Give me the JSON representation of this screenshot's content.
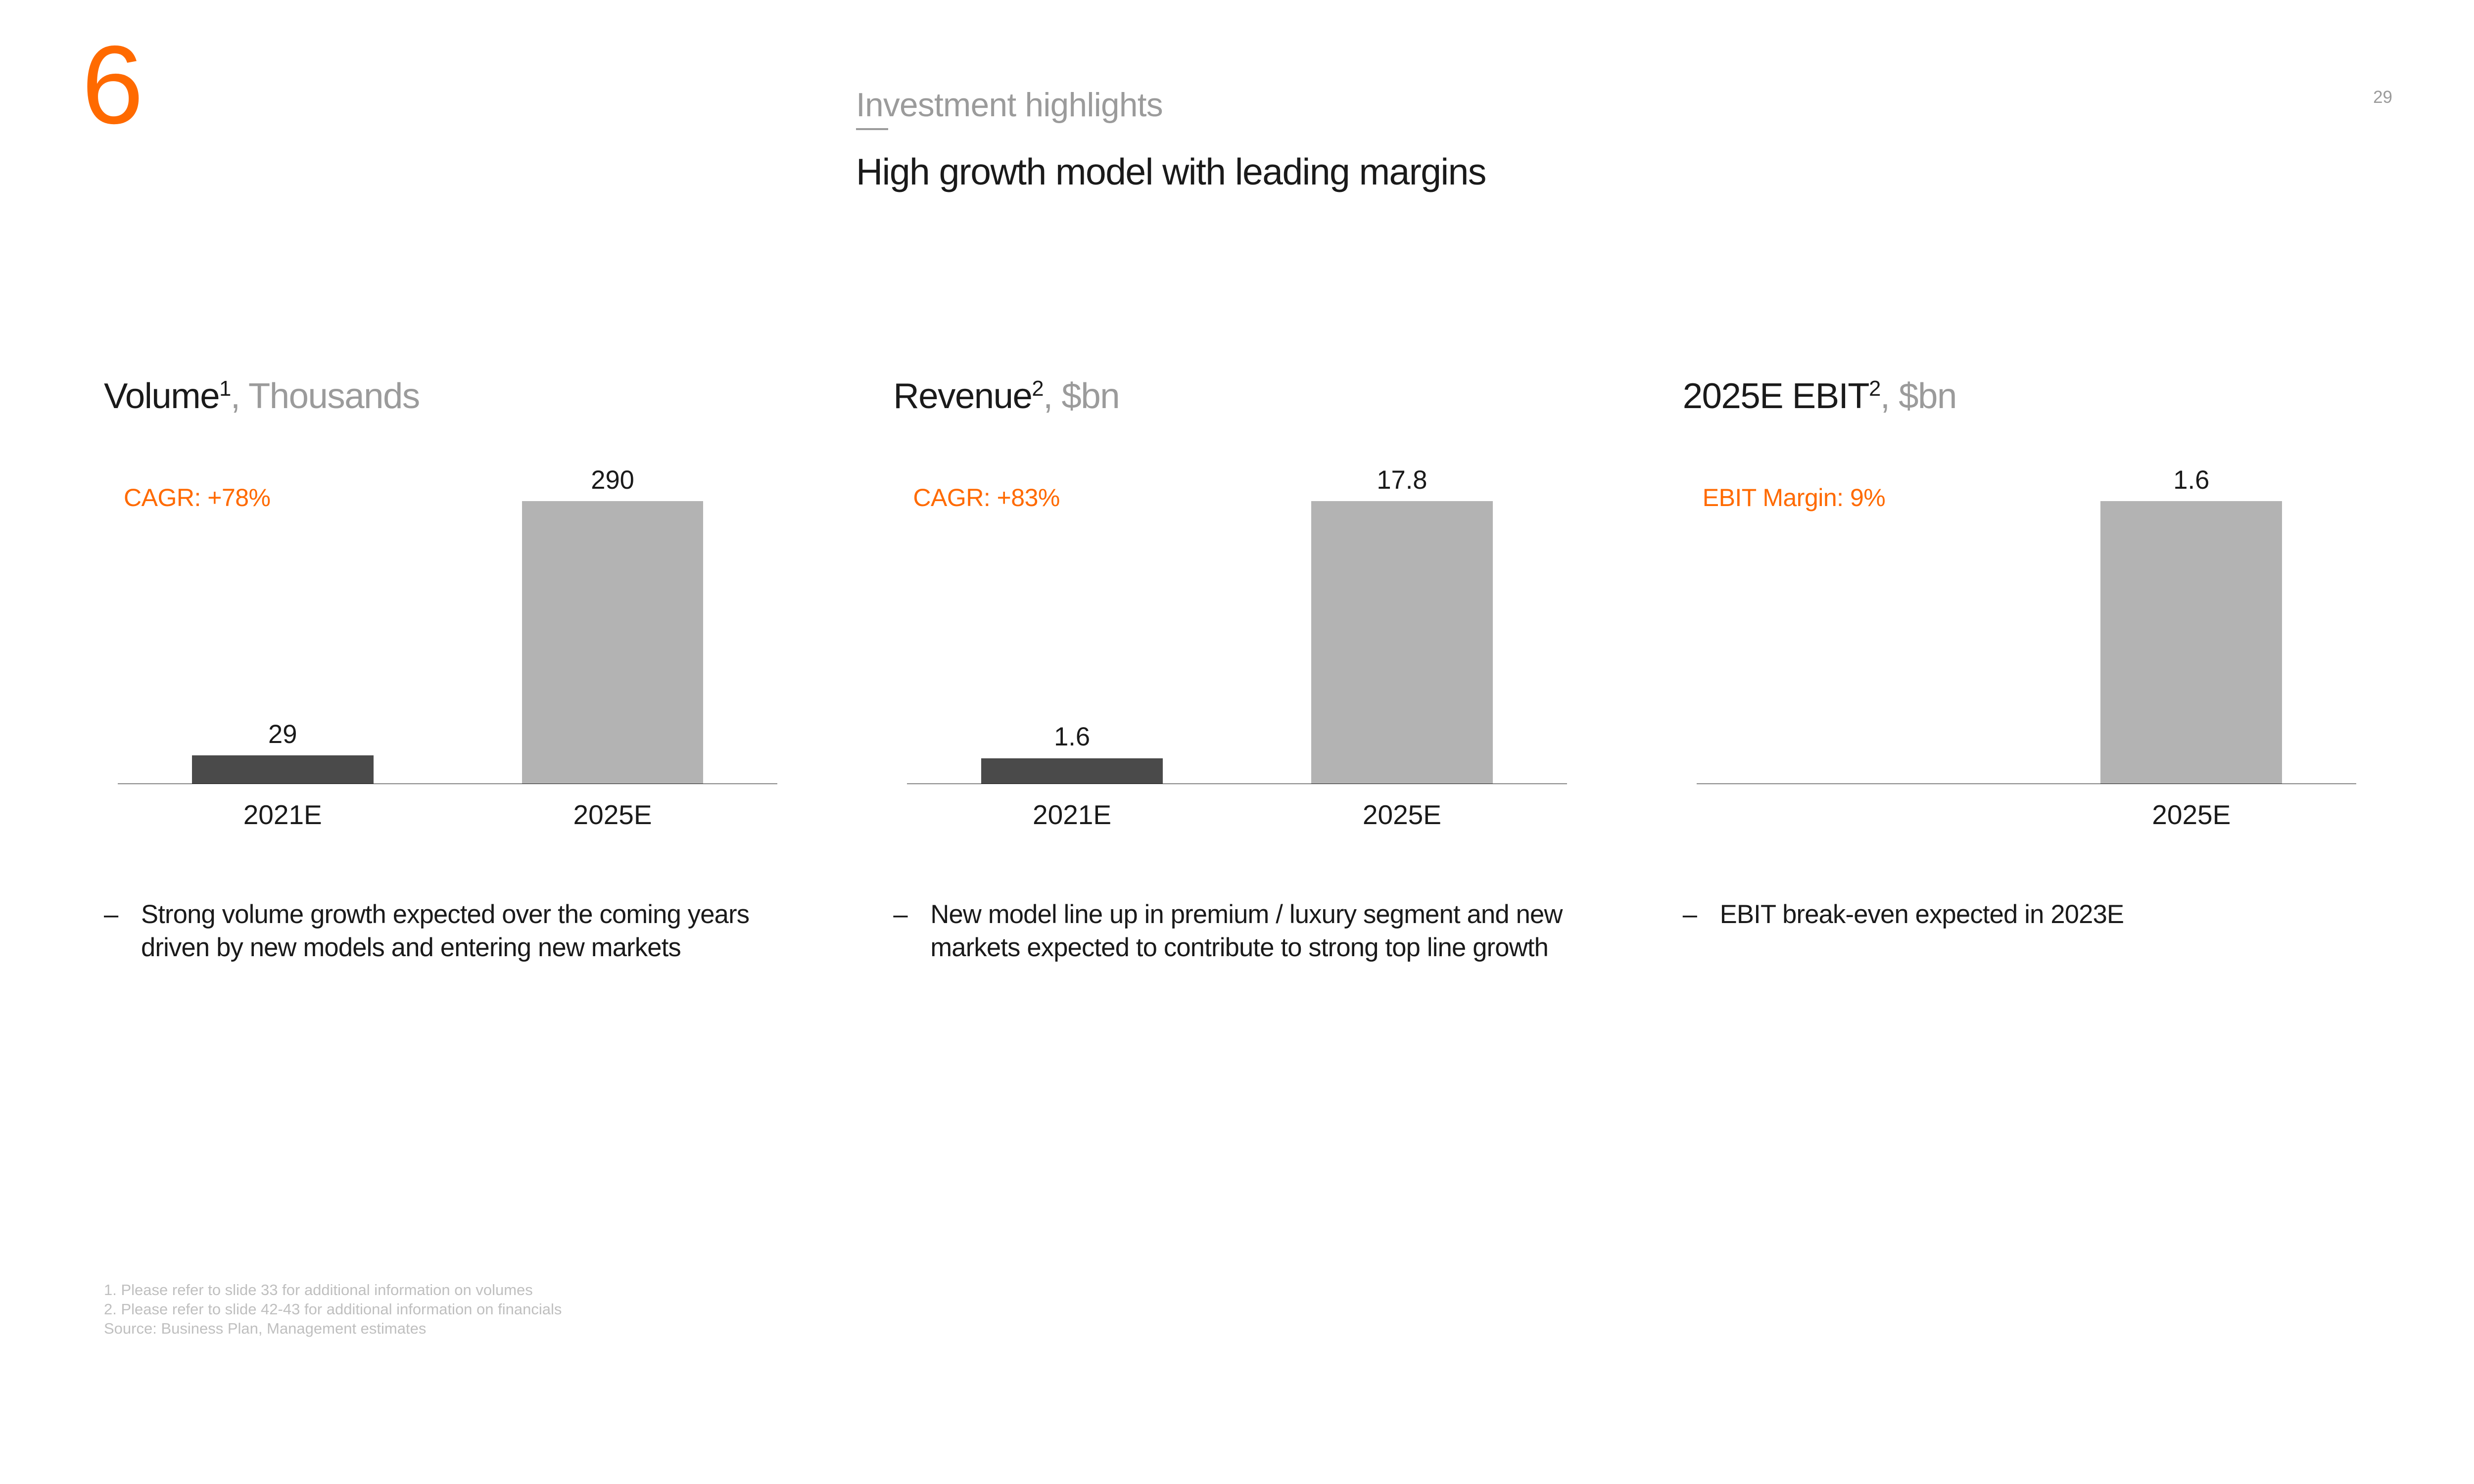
{
  "colors": {
    "accent": "#ff6a00",
    "muted": "#9b9b9b",
    "text": "#1a1a1a",
    "bar_dark": "#4a4a4a",
    "bar_light": "#b3b3b3",
    "footnote": "#bfbfbf"
  },
  "header": {
    "section_number": "6",
    "section_label": "Investment highlights",
    "title": "High growth model with leading margins",
    "page_number": "29"
  },
  "charts": [
    {
      "title_main": "Volume",
      "title_sup": "1",
      "title_unit": ", Thousands",
      "metric_label": "CAGR: +78%",
      "max_value": 290,
      "bars": [
        {
          "label": "2021E",
          "value": 29,
          "display": "29",
          "color_key": "bar_dark"
        },
        {
          "label": "2025E",
          "value": 290,
          "display": "290",
          "color_key": "bar_light"
        }
      ],
      "note": "Strong volume growth expected over the coming years driven by new models and entering new markets"
    },
    {
      "title_main": "Revenue",
      "title_sup": "2",
      "title_unit": ", $bn",
      "metric_label": "CAGR: +83%",
      "max_value": 17.8,
      "bars": [
        {
          "label": "2021E",
          "value": 1.6,
          "display": "1.6",
          "color_key": "bar_dark"
        },
        {
          "label": "2025E",
          "value": 17.8,
          "display": "17.8",
          "color_key": "bar_light"
        }
      ],
      "note": "New model line up in premium / luxury segment and new markets expected to contribute to strong top line growth"
    },
    {
      "title_main": "2025E EBIT",
      "title_sup": "2",
      "title_unit": ", $bn",
      "metric_label": "EBIT Margin: 9%",
      "max_value": 1.6,
      "bars": [
        {
          "label": "",
          "value": 0,
          "display": "",
          "color_key": "bar_light",
          "hidden": true
        },
        {
          "label": "2025E",
          "value": 1.6,
          "display": "1.6",
          "color_key": "bar_light"
        }
      ],
      "single_bar_offset": true,
      "note": "EBIT break-even expected in 2023E"
    }
  ],
  "footnotes": [
    "1. Please refer to slide 33 for additional information on volumes",
    "2. Please refer to slide 42-43 for additional information on financials",
    "Source: Business Plan, Management estimates"
  ],
  "chart_style": {
    "bar_area_height_pct": 88,
    "bar_width_pct": 55
  }
}
